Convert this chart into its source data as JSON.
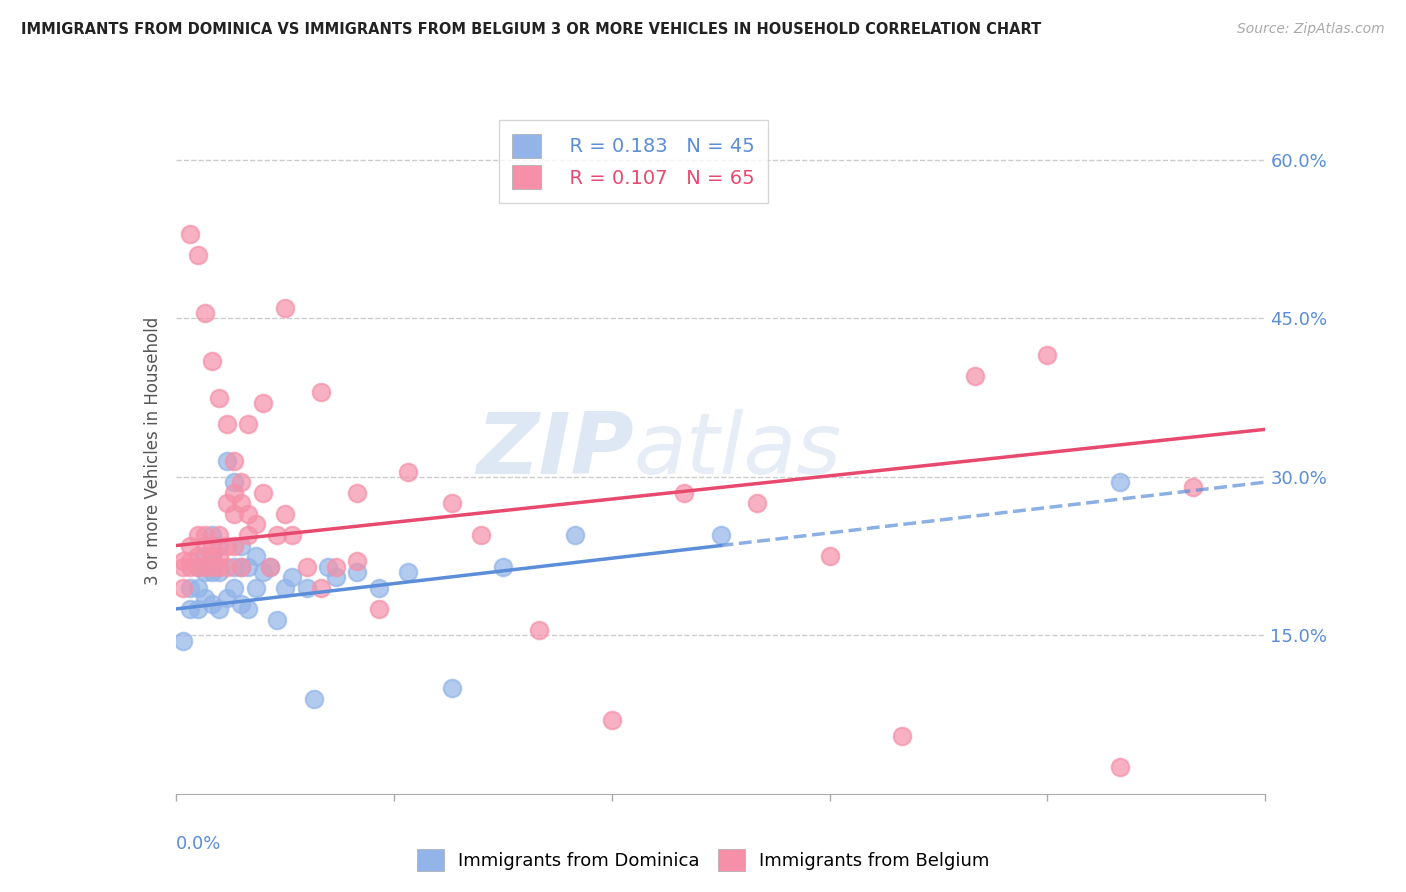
{
  "title": "IMMIGRANTS FROM DOMINICA VS IMMIGRANTS FROM BELGIUM 3 OR MORE VEHICLES IN HOUSEHOLD CORRELATION CHART",
  "source": "Source: ZipAtlas.com",
  "ylabel_label": "3 or more Vehicles in Household",
  "xmin": 0.0,
  "xmax": 0.15,
  "ymin": 0.0,
  "ymax": 0.65,
  "dominica_color": "#92b4e8",
  "belgium_color": "#f590a8",
  "dominica_R": "0.183",
  "dominica_N": "45",
  "belgium_R": "0.107",
  "belgium_N": "65",
  "dominica_line_color": "#5b8dd9",
  "belgium_line_color": "#e8496e",
  "watermark_zip": "ZIP",
  "watermark_atlas": "atlas",
  "dominica_x": [
    0.001,
    0.002,
    0.002,
    0.003,
    0.003,
    0.003,
    0.004,
    0.004,
    0.004,
    0.005,
    0.005,
    0.005,
    0.005,
    0.006,
    0.006,
    0.006,
    0.007,
    0.007,
    0.008,
    0.008,
    0.008,
    0.009,
    0.009,
    0.009,
    0.01,
    0.01,
    0.011,
    0.011,
    0.012,
    0.013,
    0.014,
    0.015,
    0.016,
    0.018,
    0.019,
    0.021,
    0.022,
    0.025,
    0.028,
    0.032,
    0.038,
    0.045,
    0.055,
    0.075,
    0.13
  ],
  "dominica_y": [
    0.145,
    0.175,
    0.195,
    0.175,
    0.195,
    0.215,
    0.185,
    0.21,
    0.225,
    0.18,
    0.21,
    0.225,
    0.245,
    0.175,
    0.21,
    0.235,
    0.185,
    0.315,
    0.195,
    0.215,
    0.295,
    0.18,
    0.215,
    0.235,
    0.175,
    0.215,
    0.195,
    0.225,
    0.21,
    0.215,
    0.165,
    0.195,
    0.205,
    0.195,
    0.09,
    0.215,
    0.205,
    0.21,
    0.195,
    0.21,
    0.1,
    0.215,
    0.245,
    0.245,
    0.295
  ],
  "belgium_x": [
    0.001,
    0.001,
    0.001,
    0.002,
    0.002,
    0.002,
    0.003,
    0.003,
    0.003,
    0.004,
    0.004,
    0.004,
    0.005,
    0.005,
    0.005,
    0.006,
    0.006,
    0.006,
    0.007,
    0.007,
    0.007,
    0.008,
    0.008,
    0.008,
    0.009,
    0.009,
    0.01,
    0.01,
    0.011,
    0.012,
    0.013,
    0.014,
    0.015,
    0.016,
    0.018,
    0.02,
    0.022,
    0.025,
    0.028,
    0.032,
    0.038,
    0.042,
    0.05,
    0.06,
    0.07,
    0.08,
    0.09,
    0.1,
    0.11,
    0.12,
    0.13,
    0.14,
    0.002,
    0.003,
    0.004,
    0.005,
    0.006,
    0.007,
    0.008,
    0.009,
    0.01,
    0.012,
    0.015,
    0.02,
    0.025
  ],
  "belgium_y": [
    0.22,
    0.195,
    0.215,
    0.22,
    0.215,
    0.235,
    0.215,
    0.225,
    0.245,
    0.215,
    0.235,
    0.245,
    0.215,
    0.225,
    0.235,
    0.215,
    0.225,
    0.245,
    0.215,
    0.235,
    0.275,
    0.235,
    0.265,
    0.285,
    0.215,
    0.275,
    0.245,
    0.265,
    0.255,
    0.285,
    0.215,
    0.245,
    0.265,
    0.245,
    0.215,
    0.195,
    0.215,
    0.285,
    0.175,
    0.305,
    0.275,
    0.245,
    0.155,
    0.07,
    0.285,
    0.275,
    0.225,
    0.055,
    0.395,
    0.415,
    0.025,
    0.29,
    0.53,
    0.51,
    0.455,
    0.41,
    0.375,
    0.35,
    0.315,
    0.295,
    0.35,
    0.37,
    0.46,
    0.38,
    0.22
  ]
}
